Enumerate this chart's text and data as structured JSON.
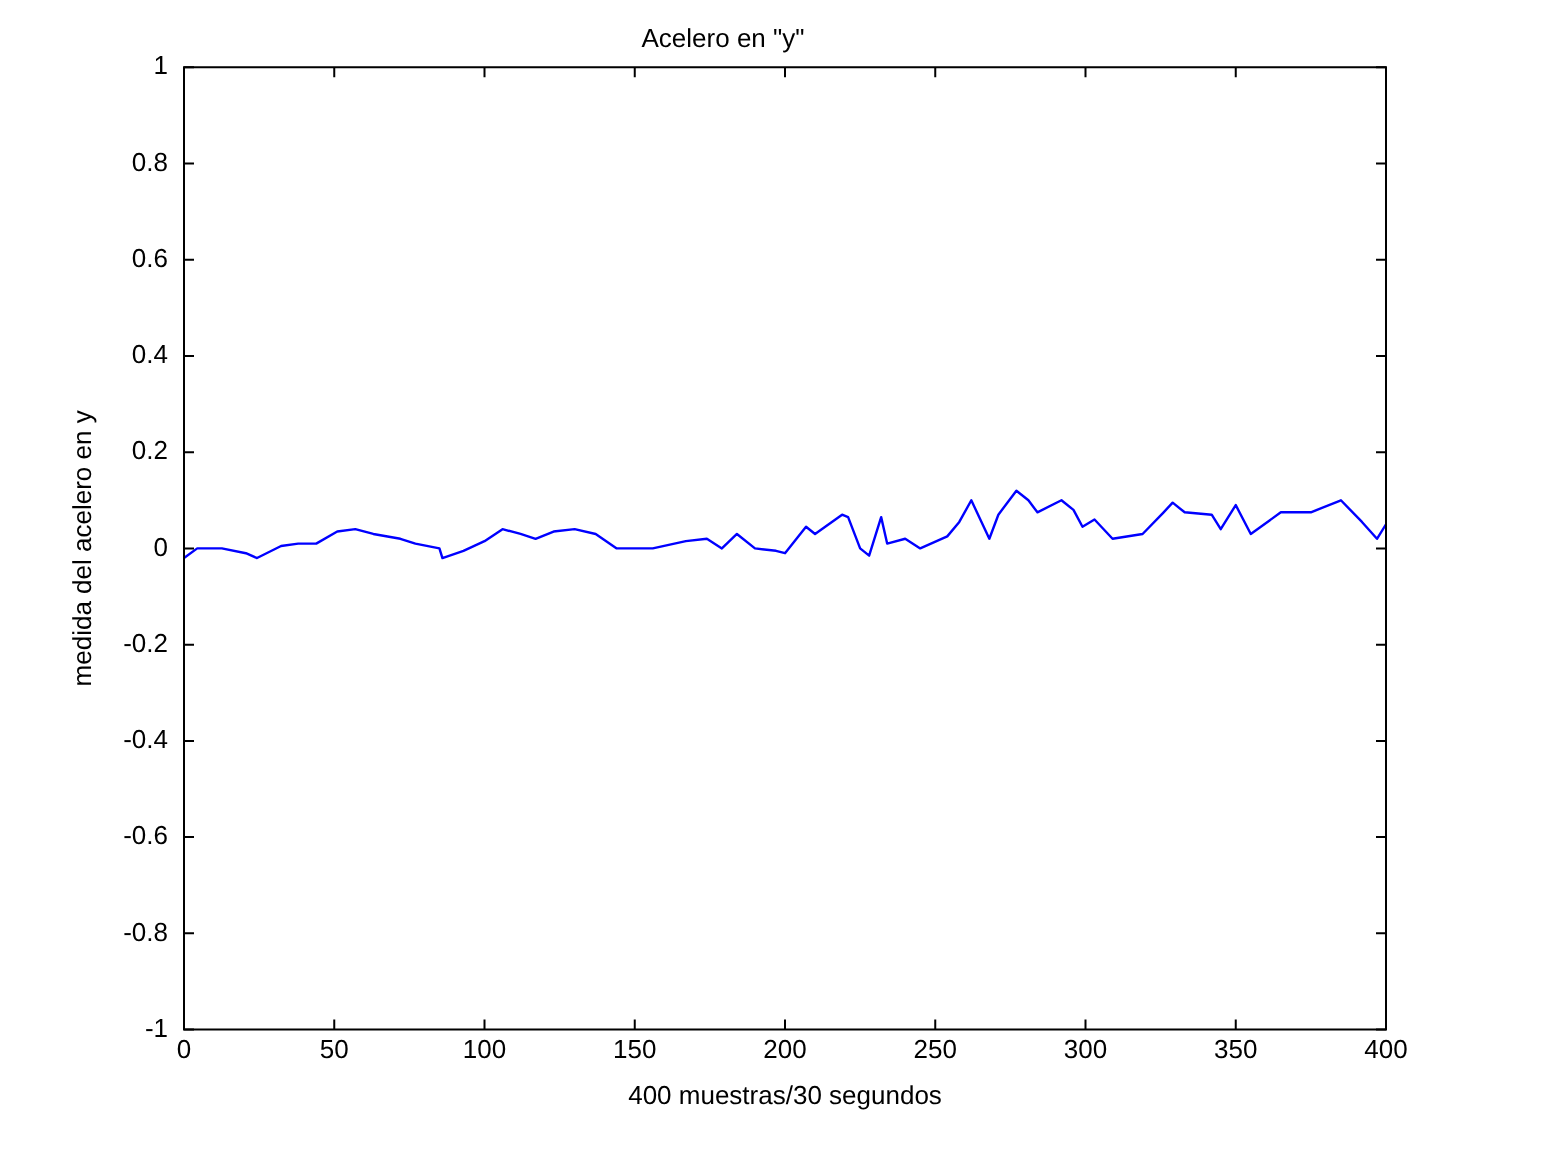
{
  "chart_data": {
    "type": "line",
    "title": "Acelero en \"y\"",
    "xlabel": "400 muestras/30 segundos",
    "ylabel": "medida del acelero en y",
    "x": [
      0,
      4.4,
      12.6,
      20.6,
      24.3,
      32.3,
      38,
      44,
      51,
      57,
      63,
      72,
      77,
      85,
      86,
      93,
      100,
      106,
      112,
      117,
      123,
      130,
      137,
      144,
      156,
      167,
      174,
      179,
      184,
      190,
      197,
      200,
      207,
      210,
      219,
      221,
      225,
      228,
      232,
      234,
      240,
      245,
      254,
      258,
      262,
      268,
      271,
      277,
      281,
      284,
      292,
      296,
      299,
      303,
      309,
      319,
      326,
      329,
      333,
      342,
      345,
      350,
      355,
      365,
      375,
      385,
      392,
      397,
      400
    ],
    "series": [
      {
        "color": "#0000ff",
        "values": [
          -0.02,
          0,
          0,
          -0.01,
          -0.02,
          0.005,
          0.01,
          0.01,
          0.035,
          0.04,
          0.03,
          0.02,
          0.01,
          0,
          -0.02,
          -0.005,
          0.015,
          0.04,
          0.03,
          0.02,
          0.035,
          0.04,
          0.03,
          0,
          0,
          0.015,
          0.02,
          0,
          0.03,
          0,
          -0.005,
          -0.01,
          0.045,
          0.03,
          0.07,
          0.065,
          0,
          -0.015,
          0.065,
          0.01,
          0.02,
          0,
          0.025,
          0.055,
          0.1,
          0.02,
          0.07,
          0.12,
          0.1,
          0.075,
          0.1,
          0.08,
          0.045,
          0.06,
          0.02,
          0.03,
          0.075,
          0.095,
          0.075,
          0.07,
          0.04,
          0.09,
          0.03,
          0.075,
          0.075,
          0.1,
          0.055,
          0.02,
          0.05
        ]
      }
    ],
    "xlim": [
      0,
      400
    ],
    "xticks": [
      0,
      50,
      100,
      150,
      200,
      250,
      300,
      350,
      400
    ],
    "ylim": [
      -1,
      1
    ],
    "yticks": [
      -1,
      -0.8,
      -0.6,
      -0.4,
      -0.2,
      0,
      0.2,
      0.4,
      0.6,
      0.8,
      1
    ],
    "grid": false,
    "legend": false,
    "marker": "none",
    "line_style": "solid"
  }
}
